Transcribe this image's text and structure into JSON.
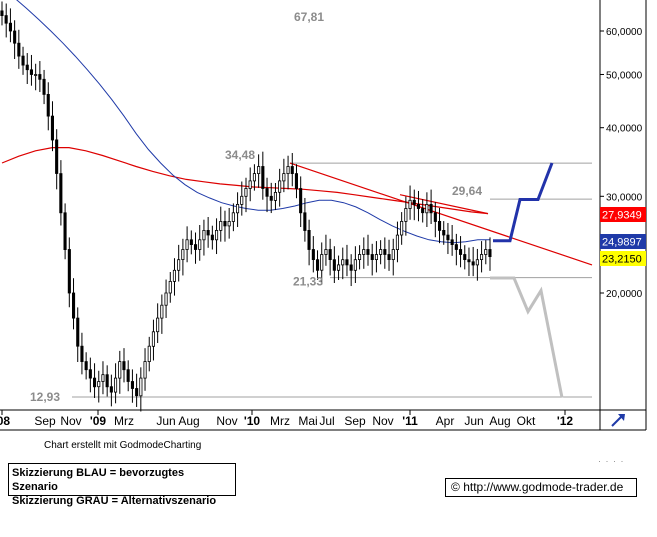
{
  "chart_data": {
    "type": "line",
    "subtype": "candlestick",
    "y_scale": "log",
    "ylim": [
      11.5,
      70
    ],
    "y_ticks": [
      {
        "value": 60,
        "label": "60,0000"
      },
      {
        "value": 50,
        "label": "50,0000"
      },
      {
        "value": 40,
        "label": "40,0000"
      },
      {
        "value": 30,
        "label": "30,0000"
      },
      {
        "value": 20,
        "label": "20,0000"
      }
    ],
    "x_ticks": [
      {
        "label": "'08",
        "year": true
      },
      {
        "label": "Sep",
        "year": false
      },
      {
        "label": "Nov",
        "year": false
      },
      {
        "label": "'09",
        "year": true
      },
      {
        "label": "Mrz",
        "year": false
      },
      {
        "label": "Jun",
        "year": false
      },
      {
        "label": "Aug",
        "year": false
      },
      {
        "label": "Nov",
        "year": false
      },
      {
        "label": "'10",
        "year": true
      },
      {
        "label": "Mrz",
        "year": false
      },
      {
        "label": "Mai",
        "year": false
      },
      {
        "label": "Jul",
        "year": false
      },
      {
        "label": "Sep",
        "year": false
      },
      {
        "label": "Nov",
        "year": false
      },
      {
        "label": "'11",
        "year": true
      },
      {
        "label": "Apr",
        "year": false
      },
      {
        "label": "Jun",
        "year": false
      },
      {
        "label": "Aug",
        "year": false
      },
      {
        "label": "Okt",
        "year": false
      },
      {
        "label": "'12",
        "year": true
      }
    ],
    "value_badges": [
      {
        "value": 27.9349,
        "label": "27,9349",
        "bg": "#ff0000",
        "fg": "#ffffff"
      },
      {
        "value": 24.9897,
        "label": "24,9897",
        "bg": "#1f3aa8",
        "fg": "#ffffff"
      },
      {
        "value": 23.215,
        "label": "23,2150",
        "bg": "#ffff00",
        "fg": "#000000"
      }
    ],
    "annotations": [
      {
        "text": "67,81",
        "value": 67.81
      },
      {
        "text": "34,48",
        "value": 34.48
      },
      {
        "text": "29,64",
        "value": 29.64
      },
      {
        "text": "21,33",
        "value": 21.33
      },
      {
        "text": "12,93",
        "value": 12.93
      }
    ],
    "horizontal_levels": [
      34.48,
      29.64,
      21.33,
      12.93
    ],
    "series": [
      {
        "role": "price",
        "color": "#000000",
        "values": [
          64,
          62,
          60,
          57,
          54,
          52,
          51,
          50,
          50,
          49,
          46,
          42,
          38,
          33,
          28,
          24,
          20,
          18,
          16,
          15,
          14.5,
          14,
          13.5,
          13.8,
          14.2,
          13.5,
          13.2,
          14,
          15,
          14.5,
          13.8,
          13.4,
          13,
          14,
          15,
          16,
          17,
          18,
          19,
          20,
          21,
          22,
          23,
          24,
          25,
          24.5,
          24,
          25,
          26,
          25.5,
          25,
          26,
          27,
          26.5,
          27,
          28,
          29,
          30,
          31,
          32,
          33,
          34,
          31,
          30,
          29.5,
          30.5,
          32,
          33,
          34,
          33,
          31,
          28,
          26,
          24,
          23,
          22,
          23.5,
          24,
          23,
          22,
          22.5,
          23,
          22.5,
          22,
          23,
          23.5,
          24,
          23.5,
          23,
          23.5,
          24,
          23.5,
          23,
          24,
          25.5,
          27,
          28.5,
          29.5,
          29,
          28.5,
          28,
          29,
          28,
          27,
          26,
          25.5,
          25,
          24.5,
          24,
          23.5,
          23,
          22.8,
          22.5,
          23,
          23.5,
          24,
          23.3
        ]
      },
      {
        "role": "ma-short",
        "color": "#1f3aa8",
        "values": [
          72,
          69,
          66,
          63,
          60,
          57,
          54,
          51,
          48,
          45,
          42,
          39,
          36.5,
          34.5,
          32.8,
          31.5,
          30.5,
          29.8,
          29.2,
          28.8,
          28.5,
          28.3,
          28.3,
          28.5,
          28.8,
          29.2,
          29.5,
          29.5,
          29.2,
          28.7,
          28,
          27.2,
          26.5,
          25.9,
          25.4,
          25,
          24.8,
          24.7,
          24.8,
          25,
          25
        ]
      },
      {
        "role": "ma-long",
        "color": "#dd0000",
        "values": [
          34.5,
          35.5,
          36.3,
          36.8,
          36.8,
          36.3,
          35.6,
          34.8,
          34,
          33.3,
          32.7,
          32.2,
          31.9,
          31.6,
          31.4,
          31.2,
          31.1,
          31,
          30.9,
          30.7,
          30.5,
          30.2,
          29.9,
          29.6,
          29.3,
          29,
          28.7,
          28.4,
          28.1,
          27.9
        ]
      }
    ],
    "trendlines": [
      {
        "color": "#dd0000",
        "from": 34.48,
        "to": 22.5
      },
      {
        "color": "#dd0000",
        "from": 30.2,
        "to": 27.9
      }
    ],
    "scenarios": [
      {
        "name": "blau",
        "color": "#2233aa",
        "values": [
          24.9,
          24.9,
          29.6,
          29.6,
          34.5
        ]
      },
      {
        "name": "grau",
        "color": "#c0c0c0",
        "values": [
          21.3,
          21.3,
          18.5,
          20.2,
          12.9
        ]
      }
    ]
  },
  "footer": {
    "credit": "Chart erstellt mit GodmodeCharting",
    "legend_blue": "Skizzierung BLAU = bevorzugtes Szenario",
    "legend_grey": "Skizzierung GRAU = Alternativszenario",
    "url_symbol": "©",
    "url": "http://www.godmode-trader.de"
  },
  "colors": {
    "frame": "#000000",
    "hline": "#a0a0a0",
    "axis_bg": "#ffffff",
    "arrow": "#1f3aa8"
  },
  "icons": {
    "scale_toggle": "trend-arrow-icon"
  }
}
